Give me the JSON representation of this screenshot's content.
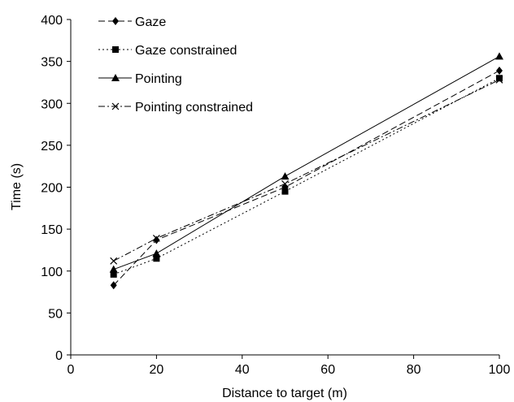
{
  "chart_data": {
    "type": "line",
    "xlabel": "Distance to target (m)",
    "ylabel": "Time (s)",
    "xlim": [
      0,
      100
    ],
    "ylim": [
      0,
      400
    ],
    "xticks": [
      0,
      20,
      40,
      60,
      80,
      100
    ],
    "yticks": [
      0,
      50,
      100,
      150,
      200,
      250,
      300,
      350,
      400
    ],
    "x": [
      10,
      20,
      50,
      100
    ],
    "grid": false,
    "legend_position": "top-left",
    "series": [
      {
        "name": "Gaze",
        "values": [
          83,
          137,
          200,
          339
        ],
        "dash": "dashed",
        "marker": "diamond"
      },
      {
        "name": "Gaze constrained",
        "values": [
          96,
          115,
          195,
          330
        ],
        "dash": "dotted",
        "marker": "square"
      },
      {
        "name": "Pointing",
        "values": [
          102,
          121,
          213,
          356
        ],
        "dash": "solid",
        "marker": "triangle"
      },
      {
        "name": "Pointing constrained",
        "values": [
          112,
          139,
          204,
          328
        ],
        "dash": "dashdot",
        "marker": "x"
      }
    ]
  }
}
